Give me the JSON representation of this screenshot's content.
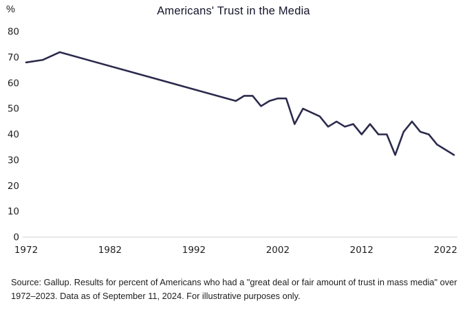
{
  "chart_data": {
    "type": "line",
    "title": "Americans' Trust in the Media",
    "ylabel": "%",
    "xlabel": "",
    "x": [
      1972,
      1974,
      1976,
      1997,
      1998,
      1999,
      2000,
      2001,
      2002,
      2003,
      2004,
      2005,
      2007,
      2008,
      2009,
      2010,
      2011,
      2012,
      2013,
      2014,
      2015,
      2016,
      2017,
      2018,
      2019,
      2020,
      2021,
      2022,
      2023
    ],
    "values": [
      68,
      69,
      72,
      53,
      55,
      55,
      51,
      53,
      54,
      54,
      44,
      50,
      47,
      43,
      45,
      43,
      44,
      40,
      44,
      40,
      40,
      32,
      41,
      45,
      41,
      40,
      36,
      34,
      32
    ],
    "xlim": [
      1972,
      2023
    ],
    "ylim": [
      0,
      80
    ],
    "yticks": [
      0,
      10,
      20,
      30,
      40,
      50,
      60,
      70,
      80
    ],
    "xticks": [
      1972,
      1982,
      1992,
      2002,
      2012,
      2022
    ],
    "line_color": "#2b2a4c",
    "axis_color": "#cfcfcf",
    "grid": false,
    "legend": "none"
  },
  "footer": {
    "source": "Source: Gallup. Results for percent of Americans who had a \"great deal or fair amount of trust in mass media\" over 1972–2023. Data as of September 11, 2024. For illustrative purposes only."
  }
}
